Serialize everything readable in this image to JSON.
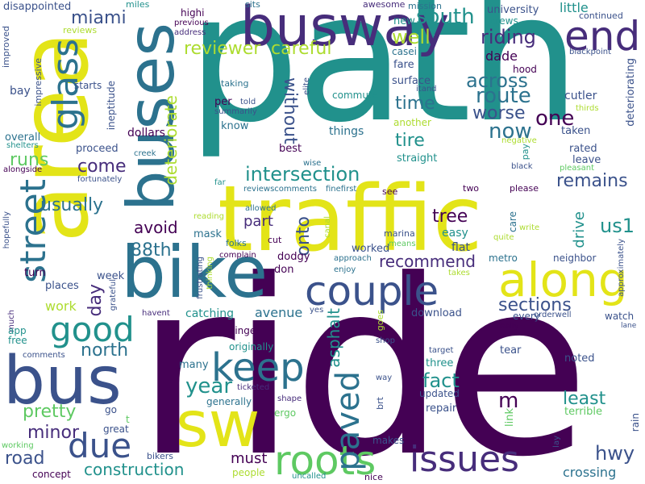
{
  "palette": {
    "dark": "#440154",
    "navy": "#3b528b",
    "teal": "#21918c",
    "blue": "#2c728e",
    "green": "#5ec962",
    "lime": "#addc30",
    "yellow": "#e3e418",
    "purple": "#472d7b"
  },
  "words": {
    "ride": "ride",
    "path": "path",
    "area": "area",
    "traffic": "traffic",
    "busway": "busway",
    "buses": "buses",
    "bike": "bike",
    "bus": "bus",
    "sw": "sw",
    "end": "end",
    "glass": "glass",
    "street": "street",
    "along": "along",
    "couple": "couple",
    "issues": "issues",
    "roots": "roots",
    "keep": "keep",
    "good": "good",
    "due": "due",
    "paved": "paved",
    "south": "south",
    "riding": "riding",
    "well": "well",
    "reviewer": "reviewer",
    "careful": "careful",
    "miami": "miami",
    "across": "across",
    "route": "route",
    "worse": "worse",
    "one": "one",
    "now": "now",
    "time": "time",
    "tire": "tire",
    "without": "without",
    "intersection": "intersection",
    "remains": "remains",
    "come": "come",
    "runs": "runs",
    "usually": "usually",
    "deteriorate": "deteriorate",
    "tree": "tree",
    "avoid": "avoid",
    "us1": "us1",
    "drive": "drive",
    "88th": "88th",
    "onto": "onto",
    "part": "part",
    "recommend": "recommend",
    "sections": "sections",
    "north": "north",
    "year": "year",
    "fact": "fact",
    "asphalt": "asphalt",
    "least": "least",
    "pretty": "pretty",
    "minor": "minor",
    "hwy": "hwy",
    "construction": "construction",
    "road": "road",
    "must": "must",
    "crossing": "crossing",
    "avenue": "avenue",
    "day": "day",
    "work": "work",
    "m": "m",
    "university": "university",
    "little": "little",
    "crews": "crews",
    "continued": "continued",
    "dade": "dade",
    "hood": "hood",
    "cutler": "cutler",
    "taken": "taken",
    "rated": "rated",
    "leave": "leave",
    "things": "things",
    "another": "another",
    "straight": "straight",
    "best": "best",
    "know": "know",
    "per": "per",
    "taking": "taking",
    "commute": "commute",
    "surface": "surface",
    "worked": "worked",
    "mission": "mission",
    "awesome": "awesome",
    "sits": "sits",
    "miles": "miles",
    "disappointed": "disappointed",
    "reviews": "reviews",
    "improved": "improved",
    "impressive": "impressive",
    "bay": "bay",
    "overall": "overall",
    "shelters": "shelters",
    "alongside": "alongside",
    "starts": "starts",
    "ineptitude": "ineptitude",
    "dollars": "dollars",
    "proceed": "proceed",
    "creek": "creek",
    "fortunately": "fortunately",
    "highi": "highi",
    "previous": "previous",
    "address": "address",
    "new": "new",
    "fare": "fare",
    "casei": "casei",
    "itand": "itand",
    "elite": "elite",
    "told": "told",
    "summarily": "summarily",
    "blackpoint": "blackpoint",
    "deteriorating": "deteriorating",
    "thirds": "thirds",
    "negative": "negative",
    "pay": "pay",
    "black": "black",
    "pleasant": "pleasant",
    "wise": "wise",
    "reviewscomments": "reviewscomments",
    "finefirst": "finefirst",
    "see": "see",
    "far": "far",
    "two": "two",
    "please": "please",
    "allowed": "allowed",
    "reading": "reading",
    "mask": "mask",
    "cut": "cut",
    "folks": "folks",
    "hopefully": "hopefully",
    "turn": "turn",
    "canal": "canal",
    "marina": "marina",
    "easy": "easy",
    "care": "care",
    "write": "write",
    "flat": "flat",
    "quite": "quite",
    "means": "means",
    "metro": "metro",
    "neighbor": "neighbor",
    "approximately": "approximately",
    "dodgy": "dodgy",
    "complain": "complain",
    "approach": "approach",
    "enjoy": "enjoy",
    "takes": "takes",
    "don": "don",
    "frustrating": "frustrating",
    "thinking": "thinking",
    "week": "week",
    "places": "places",
    "grateful": "grateful",
    "catching": "catching",
    "havent": "havent",
    "much": "much",
    "yes": "yes",
    "download": "download",
    "goes": "goes",
    "watch": "watch",
    "every": "every",
    "orderwell": "orderwell",
    "lane": "lane",
    "really": "really",
    "app": "app",
    "free": "free",
    "linger": "linger",
    "shop": "shop",
    "comments": "comments",
    "originally": "originally",
    "target": "target",
    "tear": "tear",
    "noted": "noted",
    "many": "many",
    "three": "three",
    "way": "way",
    "ticketed": "ticketed",
    "brt": "brt",
    "updated": "updated",
    "generally": "generally",
    "shape": "shape",
    "ergo": "ergo",
    "repair": "repair",
    "terrible": "terrible",
    "go": "go",
    "t": "t",
    "great": "great",
    "link": "link",
    "rain": "rain",
    "working": "working",
    "makes": "makes",
    "bikers": "bikers",
    "lay": "lay",
    "concept": "concept",
    "people": "people",
    "uncalled": "uncalled",
    "nice": "nice"
  }
}
